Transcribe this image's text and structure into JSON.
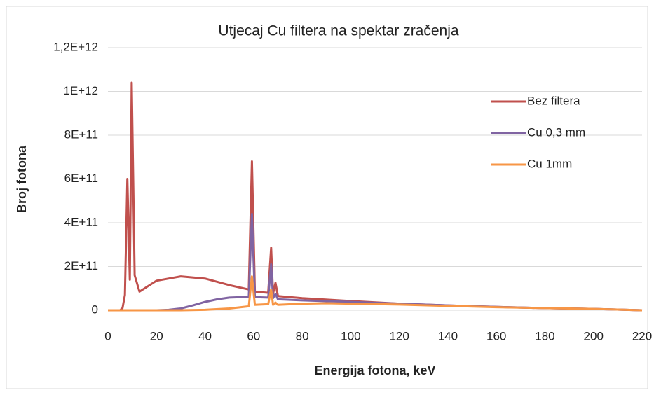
{
  "chart_data": {
    "type": "line",
    "title": "Utjecaj Cu filtera na spektar zračenja",
    "xlabel": "Energija fotona, keV",
    "ylabel": "Broj fotona",
    "xlim": [
      0,
      220
    ],
    "xticks": [
      0,
      20,
      40,
      60,
      80,
      100,
      120,
      140,
      160,
      180,
      200,
      220
    ],
    "ylim": [
      0,
      1200000000000.0
    ],
    "yticks": [
      0,
      {
        "value": 200000000000.0,
        "label": "2E+11"
      },
      {
        "value": 400000000000.0,
        "label": "4E+11"
      },
      {
        "value": 600000000000.0,
        "label": "6E+11"
      },
      {
        "value": 800000000000.0,
        "label": "8E+11"
      },
      {
        "value": 1000000000000.0,
        "label": "1E+12"
      },
      {
        "value": 1200000000000.0,
        "label": "1,2E+12"
      }
    ],
    "grid": true,
    "legend": "right",
    "series": [
      {
        "name": "Bez filtera",
        "color": "#c0504d",
        "x": [
          0,
          5,
          6,
          7,
          8,
          9,
          9.8,
          11,
          13,
          20,
          30,
          40,
          50,
          58,
          59.3,
          60.5,
          66,
          67.2,
          68,
          69,
          70,
          80,
          100,
          120,
          140,
          160,
          180,
          200,
          220
        ],
        "values": [
          0,
          0,
          10000000000.0,
          70000000000.0,
          600000000000.0,
          140000000000.0,
          1040000000000.0,
          160000000000.0,
          85000000000.0,
          135000000000.0,
          155000000000.0,
          145000000000.0,
          115000000000.0,
          95000000000.0,
          680000000000.0,
          85000000000.0,
          80000000000.0,
          285000000000.0,
          75000000000.0,
          125000000000.0,
          65000000000.0,
          55000000000.0,
          42000000000.0,
          30000000000.0,
          22000000000.0,
          15000000000.0,
          10000000000.0,
          6000000000.0,
          0
        ]
      },
      {
        "name": "Cu 0,3 mm",
        "color": "#8064a2",
        "x": [
          0,
          20,
          25,
          30,
          35,
          40,
          45,
          50,
          55,
          58,
          59.3,
          60.5,
          66,
          67.2,
          68,
          69,
          70,
          80,
          100,
          120,
          140,
          160,
          180,
          200,
          220
        ],
        "values": [
          0,
          0,
          2000000000.0,
          8000000000.0,
          22000000000.0,
          38000000000.0,
          50000000000.0,
          58000000000.0,
          60000000000.0,
          62000000000.0,
          440000000000.0,
          60000000000.0,
          58000000000.0,
          210000000000.0,
          55000000000.0,
          75000000000.0,
          50000000000.0,
          45000000000.0,
          38000000000.0,
          30000000000.0,
          22000000000.0,
          15000000000.0,
          10000000000.0,
          6000000000.0,
          0
        ]
      },
      {
        "name": "Cu 1mm",
        "color": "#f79646",
        "x": [
          0,
          30,
          40,
          50,
          58,
          59.3,
          60.5,
          66,
          67.2,
          68,
          69,
          70,
          80,
          90,
          100,
          120,
          140,
          160,
          180,
          200,
          220
        ],
        "values": [
          0,
          0,
          2000000000.0,
          8000000000.0,
          18000000000.0,
          155000000000.0,
          25000000000.0,
          28000000000.0,
          95000000000.0,
          25000000000.0,
          35000000000.0,
          25000000000.0,
          30000000000.0,
          32000000000.0,
          30000000000.0,
          26000000000.0,
          20000000000.0,
          14000000000.0,
          10000000000.0,
          6000000000.0,
          0
        ]
      }
    ]
  }
}
